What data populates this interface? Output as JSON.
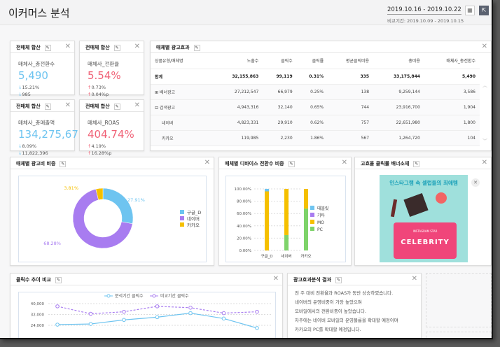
{
  "header": {
    "title": "이커머스 분석",
    "date_range": "2019.10.16 - 2019.10.22",
    "compare_range": "비교기간: 2019.10.09 - 2019.10.15",
    "calendar_icon": "calendar-icon",
    "export_icon": "export-icon"
  },
  "kpis": [
    {
      "title": "전매체 합산",
      "label": "매체사_총전환수",
      "value": "5,490",
      "color": "#6ec4f0",
      "delta1": "15.21%",
      "delta2": "985",
      "dir": "down"
    },
    {
      "title": "전매체 합산",
      "label": "매체사_전환율",
      "value": "5.54%",
      "color": "#f06277",
      "delta1": "0.73%",
      "delta2": "0.04%p",
      "dir": "up"
    },
    {
      "title": "전매체 합산",
      "label": "매체사_총매출액",
      "value": "134,275,676",
      "color": "#6ec4f0",
      "delta1": "8.09%",
      "delta2": "11,822,396",
      "dir": "down"
    },
    {
      "title": "전매체 합산",
      "label": "매체사_ROAS",
      "value": "404.74%",
      "color": "#f06277",
      "delta1": "4.19%",
      "delta2": "16.28%p",
      "dir": "up"
    }
  ],
  "ad_table": {
    "title": "매체별 광고효과",
    "headers": [
      "상품유형/매체명",
      "노출수",
      "클릭수",
      "클릭률",
      "평균클릭비용",
      "총비용",
      "매체사_총전환수"
    ],
    "rows": [
      [
        "합계",
        "32,155,863",
        "99,119",
        "0.31%",
        "335",
        "33,175,844",
        "5,490"
      ],
      [
        "⊞ 배너광고",
        "27,212,547",
        "66,979",
        "0.25%",
        "138",
        "9,259,144",
        "3,586"
      ],
      [
        "⊟ 검색광고",
        "4,943,316",
        "32,140",
        "0.65%",
        "744",
        "23,916,700",
        "1,904"
      ],
      [
        "네이버",
        "4,823,331",
        "29,910",
        "0.62%",
        "757",
        "22,651,980",
        "1,800"
      ],
      [
        "카카오",
        "119,985",
        "2,230",
        "1.86%",
        "567",
        "1,264,720",
        "104"
      ]
    ]
  },
  "chart_data": [
    {
      "type": "pie",
      "title": "매체별 광고비 비중",
      "categories": [
        "구글_D",
        "네이버",
        "카카오"
      ],
      "values": [
        27.91,
        68.28,
        3.81
      ],
      "labels": [
        "27.91%",
        "68.28%",
        "3.81%"
      ],
      "colors": [
        "#6ec4f0",
        "#a87cf0",
        "#f5c000"
      ],
      "legend": "right"
    },
    {
      "type": "bar",
      "stacked": true,
      "title": "매체별 디바이스 전환수 비중",
      "categories": [
        "구글_D",
        "네이버",
        "카카오"
      ],
      "series": [
        {
          "name": "태블릿",
          "color": "#6ec4f0",
          "values": [
            4,
            0,
            0
          ]
        },
        {
          "name": "기타",
          "color": "#a87cf0",
          "values": [
            0,
            0,
            0
          ]
        },
        {
          "name": "MO",
          "color": "#f5c000",
          "values": [
            96,
            75,
            32
          ]
        },
        {
          "name": "PC",
          "color": "#7ed36a",
          "values": [
            0,
            25,
            68
          ]
        }
      ],
      "yticks": [
        "100.00%",
        "80.00%",
        "60.00%",
        "40.00%",
        "20.00%",
        "0.00%"
      ],
      "ylim": [
        0,
        100
      ],
      "legend": "right"
    },
    {
      "type": "line",
      "title": "클릭수 추이 비교",
      "series": [
        {
          "name": "분석기간 클릭수",
          "color": "#6ec4f0",
          "values": [
            24500,
            25000,
            28000,
            30000,
            33000,
            29000,
            22000
          ]
        },
        {
          "name": "비교기간 클릭수",
          "color": "#a87cf0",
          "values": [
            38000,
            32500,
            34000,
            38000,
            37000,
            33000,
            34000
          ]
        }
      ],
      "yticks": [
        "40,000",
        "32,000",
        "24,000"
      ],
      "ylim": [
        16000,
        40000
      ],
      "legend": "top"
    }
  ],
  "banner": {
    "title": "고효율 클릭률 배너소재",
    "headline": "인스타그램 속 셀럽들의 최애템",
    "bag_text": "CELEBRITY",
    "bag_sub": "INSTAGRAM STAR"
  },
  "note": {
    "title": "광고효과분석 결과",
    "lines": [
      "전 주 대비 전환율과 ROAS가 동반 상승하였습니다.",
      "네이버의 운영비중이 가장 높았으며",
      "모바일에서의 전환비중이 높았습니다.",
      "차주에는 네이버 모바일의 운영볼륨을 확대할 예정이며",
      "카카오의 PC를 확대할 예정입니다."
    ]
  }
}
